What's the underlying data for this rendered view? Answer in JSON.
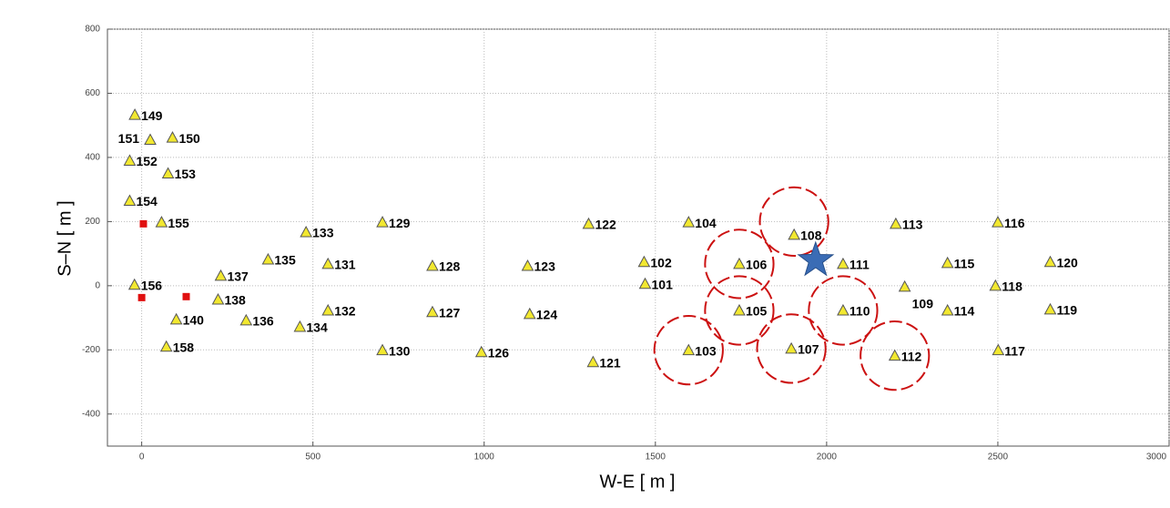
{
  "chart_data": {
    "type": "scatter",
    "xlabel": "W-E [ m ]",
    "ylabel": "S–N [ m ]",
    "xlim": [
      -100,
      3000
    ],
    "ylim": [
      -500,
      800
    ],
    "xticks": [
      0,
      500,
      1000,
      1500,
      2000,
      2500,
      3000
    ],
    "yticks": [
      -400,
      -200,
      0,
      200,
      400,
      600,
      800
    ],
    "grid": true,
    "stations": {
      "color": "#f2e830",
      "labels": [
        "149",
        "151",
        "150",
        "152",
        "153",
        "154",
        "155",
        "133",
        "129",
        "122",
        "104",
        "108",
        "113",
        "116",
        "135",
        "131",
        "137",
        "128",
        "123",
        "102",
        "106",
        "111",
        "115",
        "120",
        "101",
        "156",
        "109",
        "118",
        "138",
        "132",
        "127",
        "124",
        "105",
        "110",
        "114",
        "119",
        "140",
        "136",
        "134",
        "158",
        "130",
        "126",
        "121",
        "103",
        "107",
        "112",
        "117"
      ],
      "x": [
        -20,
        25,
        90,
        -35,
        77,
        -35,
        58,
        480,
        703,
        1305,
        1597,
        1905,
        2202,
        2500,
        369,
        544,
        231,
        849,
        1127,
        1467,
        1745,
        2048,
        2353,
        2653,
        1470,
        -21,
        2228,
        2493,
        223,
        544,
        849,
        1133,
        1745,
        2048,
        2353,
        2653,
        101,
        305,
        462,
        72,
        703,
        992,
        1318,
        1597,
        1897,
        2199,
        2501
      ],
      "y": [
        533,
        455,
        462,
        390,
        350,
        265,
        198,
        167,
        198,
        193,
        198,
        159,
        193,
        198,
        82,
        68,
        31,
        62,
        62,
        74,
        68,
        68,
        71,
        74,
        6,
        3,
        -3,
        0,
        -43,
        -77,
        -82,
        -88,
        -77,
        -77,
        -77,
        -74,
        -105,
        -108,
        -128,
        -190,
        -201,
        -207,
        -238,
        -201,
        -196,
        -218,
        -201
      ]
    },
    "sources": {
      "color": "#e01010",
      "x": [
        5,
        0,
        130
      ],
      "y": [
        193,
        -37,
        -34
      ]
    },
    "target": {
      "color": "#3a6cb5",
      "x": 1968,
      "y": 79
    },
    "circles": {
      "color": "#cc1111",
      "x": [
        1905,
        1745,
        1745,
        2048,
        1597,
        1897,
        2199
      ],
      "y": [
        200,
        68,
        -77,
        -77,
        -201,
        -196,
        -218
      ],
      "r": [
        100,
        100,
        100,
        100,
        100,
        100,
        100
      ]
    }
  }
}
